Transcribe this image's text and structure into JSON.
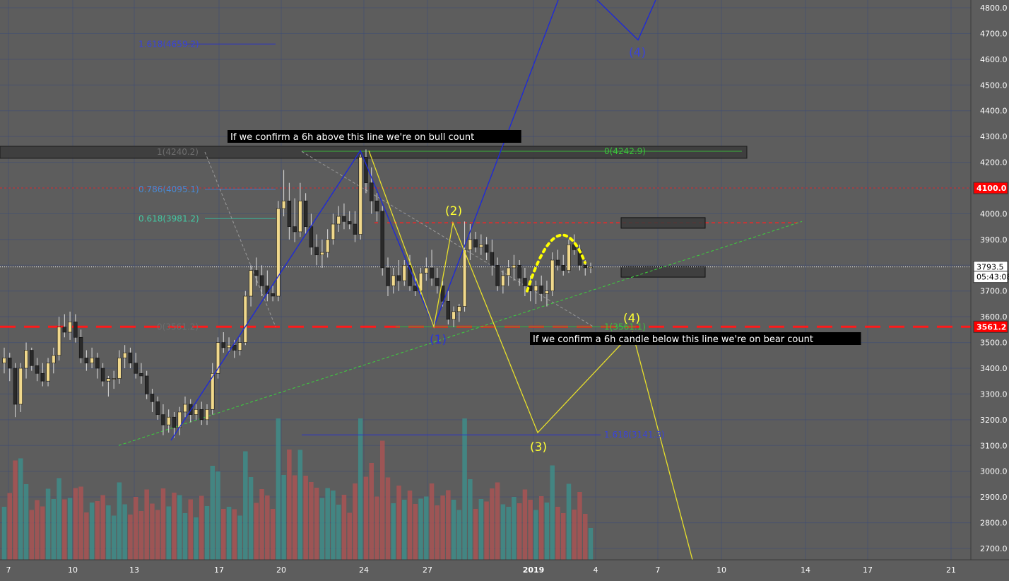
{
  "chart_data": {
    "type": "candlestick",
    "instrument_hint": "",
    "price_axis": {
      "range": [
        2640,
        4830
      ],
      "ticks": [
        2700,
        2800,
        2900,
        3000,
        3100,
        3200,
        3300,
        3400,
        3500,
        3600,
        3700,
        3800,
        3900,
        4000,
        4100,
        4200,
        4300,
        4400,
        4500,
        4600,
        4700,
        4800
      ],
      "tick_labels": [
        "2700.0",
        "2800.0",
        "2900.0",
        "3000.0",
        "3100.0",
        "3200.0",
        "3300.0",
        "3400.0",
        "3500.0",
        "3600.0",
        "3700.0",
        "3800.0",
        "3900.0",
        "4000.0",
        "4100.0",
        "4200.0",
        "4300.0",
        "4400.0",
        "4500.0",
        "4600.0",
        "4700.0",
        "4800.0"
      ],
      "badges": [
        {
          "label": "4100.0",
          "value": 4100,
          "color": "#ff0000"
        },
        {
          "label": "3793.5",
          "value": 3793.5,
          "color": "#ffffff"
        },
        {
          "label": "05:43:08",
          "value": 3755,
          "color": "#ffffff"
        },
        {
          "label": "3561.2",
          "value": 3561.2,
          "color": "#ff0000"
        }
      ]
    },
    "time_axis": {
      "ticks": [
        {
          "label": "7",
          "day": 7
        },
        {
          "label": "10",
          "day": 10
        },
        {
          "label": "13",
          "day": 13
        },
        {
          "label": "17",
          "day": 17
        },
        {
          "label": "20",
          "day": 20
        },
        {
          "label": "24",
          "day": 24
        },
        {
          "label": "27",
          "day": 27
        },
        {
          "label": "2019",
          "day": 32
        },
        {
          "label": "4",
          "day": 35
        },
        {
          "label": "7",
          "day": 38
        },
        {
          "label": "10",
          "day": 41
        },
        {
          "label": "14",
          "day": 45
        },
        {
          "label": "17",
          "day": 48
        },
        {
          "label": "21",
          "day": 52
        }
      ]
    },
    "candles_ohlc": [
      [
        3420,
        3480,
        3380,
        3440
      ],
      [
        3440,
        3460,
        3350,
        3400
      ],
      [
        3400,
        3420,
        3210,
        3260
      ],
      [
        3260,
        3420,
        3230,
        3400
      ],
      [
        3400,
        3500,
        3360,
        3470
      ],
      [
        3470,
        3480,
        3390,
        3410
      ],
      [
        3410,
        3440,
        3350,
        3380
      ],
      [
        3380,
        3420,
        3330,
        3350
      ],
      [
        3350,
        3440,
        3330,
        3420
      ],
      [
        3420,
        3480,
        3380,
        3450
      ],
      [
        3450,
        3600,
        3430,
        3560
      ],
      [
        3560,
        3610,
        3520,
        3540
      ],
      [
        3540,
        3620,
        3510,
        3580
      ],
      [
        3580,
        3610,
        3500,
        3520
      ],
      [
        3520,
        3550,
        3420,
        3440
      ],
      [
        3440,
        3470,
        3390,
        3420
      ],
      [
        3420,
        3480,
        3400,
        3440
      ],
      [
        3440,
        3460,
        3360,
        3400
      ],
      [
        3400,
        3420,
        3330,
        3350
      ],
      [
        3350,
        3370,
        3290,
        3360
      ],
      [
        3360,
        3390,
        3320,
        3360
      ],
      [
        3360,
        3470,
        3340,
        3440
      ],
      [
        3440,
        3490,
        3400,
        3460
      ],
      [
        3460,
        3480,
        3400,
        3420
      ],
      [
        3420,
        3460,
        3360,
        3380
      ],
      [
        3380,
        3420,
        3340,
        3370
      ],
      [
        3370,
        3390,
        3280,
        3300
      ],
      [
        3300,
        3320,
        3230,
        3270
      ],
      [
        3270,
        3290,
        3200,
        3220
      ],
      [
        3220,
        3260,
        3140,
        3180
      ],
      [
        3180,
        3240,
        3150,
        3210
      ],
      [
        3210,
        3230,
        3130,
        3170
      ],
      [
        3170,
        3250,
        3140,
        3230
      ],
      [
        3230,
        3290,
        3210,
        3260
      ],
      [
        3260,
        3280,
        3190,
        3220
      ],
      [
        3220,
        3260,
        3200,
        3240
      ],
      [
        3240,
        3270,
        3180,
        3200
      ],
      [
        3200,
        3260,
        3180,
        3240
      ],
      [
        3240,
        3420,
        3220,
        3380
      ],
      [
        3380,
        3520,
        3360,
        3500
      ],
      [
        3500,
        3540,
        3460,
        3480
      ],
      [
        3480,
        3520,
        3460,
        3490
      ],
      [
        3490,
        3510,
        3440,
        3470
      ],
      [
        3470,
        3520,
        3450,
        3500
      ],
      [
        3500,
        3700,
        3490,
        3680
      ],
      [
        3680,
        3800,
        3640,
        3780
      ],
      [
        3780,
        3830,
        3720,
        3760
      ],
      [
        3760,
        3800,
        3680,
        3720
      ],
      [
        3720,
        3780,
        3660,
        3690
      ],
      [
        3690,
        3720,
        3660,
        3680
      ],
      [
        3680,
        4050,
        3660,
        4020
      ],
      [
        4020,
        4170,
        3990,
        4050
      ],
      [
        4050,
        4120,
        3900,
        3950
      ],
      [
        3950,
        4060,
        3890,
        3930
      ],
      [
        3930,
        4120,
        3910,
        4050
      ],
      [
        4050,
        4080,
        3920,
        3950
      ],
      [
        3950,
        4000,
        3840,
        3870
      ],
      [
        3870,
        3920,
        3800,
        3840
      ],
      [
        3840,
        3900,
        3790,
        3850
      ],
      [
        3850,
        3940,
        3830,
        3900
      ],
      [
        3900,
        4000,
        3880,
        3960
      ],
      [
        3960,
        4030,
        3930,
        3990
      ],
      [
        3990,
        4040,
        3940,
        3970
      ],
      [
        3970,
        4010,
        3940,
        3960
      ],
      [
        3960,
        4010,
        3890,
        3920
      ],
      [
        3920,
        4230,
        3900,
        4220
      ],
      [
        4220,
        4250,
        4080,
        4120
      ],
      [
        4120,
        4180,
        4000,
        4050
      ],
      [
        4050,
        4080,
        3970,
        4010
      ],
      [
        4010,
        4030,
        3760,
        3790
      ],
      [
        3790,
        3830,
        3680,
        3720
      ],
      [
        3720,
        3790,
        3690,
        3760
      ],
      [
        3760,
        3820,
        3700,
        3740
      ],
      [
        3740,
        3820,
        3720,
        3800
      ],
      [
        3800,
        3840,
        3700,
        3720
      ],
      [
        3720,
        3760,
        3680,
        3700
      ],
      [
        3700,
        3790,
        3680,
        3770
      ],
      [
        3770,
        3830,
        3740,
        3790
      ],
      [
        3790,
        3860,
        3720,
        3750
      ],
      [
        3750,
        3790,
        3690,
        3720
      ],
      [
        3720,
        3740,
        3640,
        3660
      ],
      [
        3660,
        3700,
        3570,
        3590
      ],
      [
        3590,
        3640,
        3560,
        3620
      ],
      [
        3620,
        3650,
        3580,
        3640
      ],
      [
        3640,
        3970,
        3620,
        3860
      ],
      [
        3860,
        3960,
        3820,
        3900
      ],
      [
        3900,
        3930,
        3850,
        3870
      ],
      [
        3870,
        3920,
        3840,
        3880
      ],
      [
        3880,
        3910,
        3820,
        3850
      ],
      [
        3850,
        3900,
        3760,
        3800
      ],
      [
        3800,
        3830,
        3700,
        3720
      ],
      [
        3720,
        3780,
        3690,
        3760
      ],
      [
        3760,
        3820,
        3720,
        3790
      ],
      [
        3790,
        3840,
        3740,
        3800
      ],
      [
        3800,
        3820,
        3720,
        3750
      ],
      [
        3750,
        3790,
        3680,
        3720
      ],
      [
        3720,
        3760,
        3660,
        3700
      ],
      [
        3700,
        3740,
        3650,
        3720
      ],
      [
        3720,
        3760,
        3660,
        3690
      ],
      [
        3690,
        3740,
        3640,
        3700
      ],
      [
        3700,
        3850,
        3680,
        3820
      ],
      [
        3820,
        3860,
        3780,
        3800
      ],
      [
        3800,
        3840,
        3760,
        3780
      ],
      [
        3780,
        3900,
        3770,
        3880
      ],
      [
        3880,
        3920,
        3840,
        3860
      ],
      [
        3860,
        3880,
        3780,
        3800
      ],
      [
        3800,
        3820,
        3760,
        3790
      ],
      [
        3790,
        3810,
        3770,
        3793.5
      ]
    ],
    "volume_colors_hint": "teal=up, red=down",
    "annotations": {
      "bull_text": "If we confirm a 6h above this line we're on bull count",
      "bear_text": "If we confirm a 6h candle below this line we're on bear count",
      "fib_labels": [
        {
          "label": "1.618(4659.2)",
          "value": 4659.2
        },
        {
          "label": "1(4240.2)",
          "value": 4240.2
        },
        {
          "label": "0.786(4095.1)",
          "value": 4095.1
        },
        {
          "label": "0.618(3981.2)",
          "value": 3981.2
        },
        {
          "label": "0(3561.2)",
          "value": 3561.2
        },
        {
          "label": "0(4242.9)",
          "value": 4242.9
        },
        {
          "label": "1(3561.1)",
          "value": 3561.1
        },
        {
          "label": "1.618(3141.3)",
          "value": 3141.3
        }
      ],
      "wave_labels": [
        {
          "label": "(1)",
          "count": "bear"
        },
        {
          "label": "(2)",
          "count": "bear"
        },
        {
          "label": "(3)",
          "count": "bear"
        },
        {
          "label": "(4)",
          "count": "bear"
        },
        {
          "label": "(4)",
          "count": "bull"
        }
      ]
    }
  }
}
